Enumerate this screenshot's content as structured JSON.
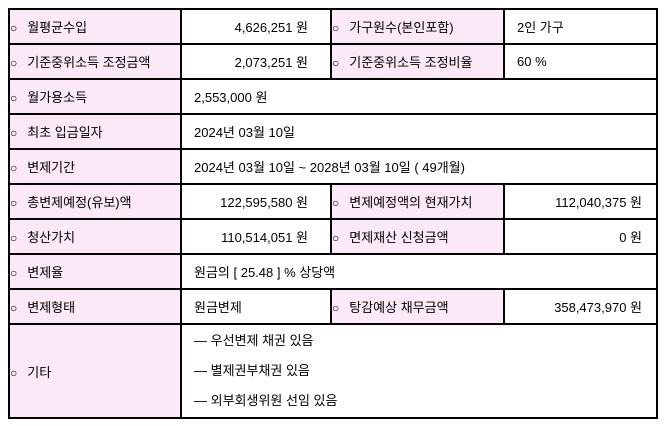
{
  "colors": {
    "label_cell_bg": "#fbe9f7",
    "value_cell_bg": "#ffffff",
    "border": "#000000",
    "text": "#000000"
  },
  "table": {
    "bullet": "○",
    "rows": [
      {
        "label1": "월평균수입",
        "value1": "4,626,251 원",
        "label2": "가구원수(본인포함)",
        "value2": "2인 가구"
      },
      {
        "label1": "기준중위소득 조정금액",
        "value1": "2,073,251 원",
        "label2": "기준중위소득 조정비율",
        "value2": "60 %"
      },
      {
        "label1": "월가용소득",
        "value1": "2,553,000 원"
      },
      {
        "label1": "최초 입금일자",
        "value1": "2024년 03월 10일"
      },
      {
        "label1": "변제기간",
        "value1": "2024년 03월 10일 ~ 2028년 03월 10일 ( 49개월)"
      },
      {
        "label1": "총변제예정(유보)액",
        "value1": "122,595,580 원",
        "label2": "변제예정액의 현재가치",
        "value2": "112,040,375 원"
      },
      {
        "label1": "청산가치",
        "value1": "110,514,051 원",
        "label2": "면제재산 신청금액",
        "value2": "0 원"
      },
      {
        "label1": "변제율",
        "value1": "원금의 [ 25.48 ] % 상당액"
      },
      {
        "label1": "변제형태",
        "value1": "원금변제",
        "label2": "탕감예상 채무금액",
        "value2": "358,473,970 원"
      },
      {
        "label1": "기타",
        "items": [
          "― 우선변제 채권 있음",
          "― 별제권부채권 있음",
          "― 외부회생위원 선임 있음"
        ]
      }
    ]
  }
}
